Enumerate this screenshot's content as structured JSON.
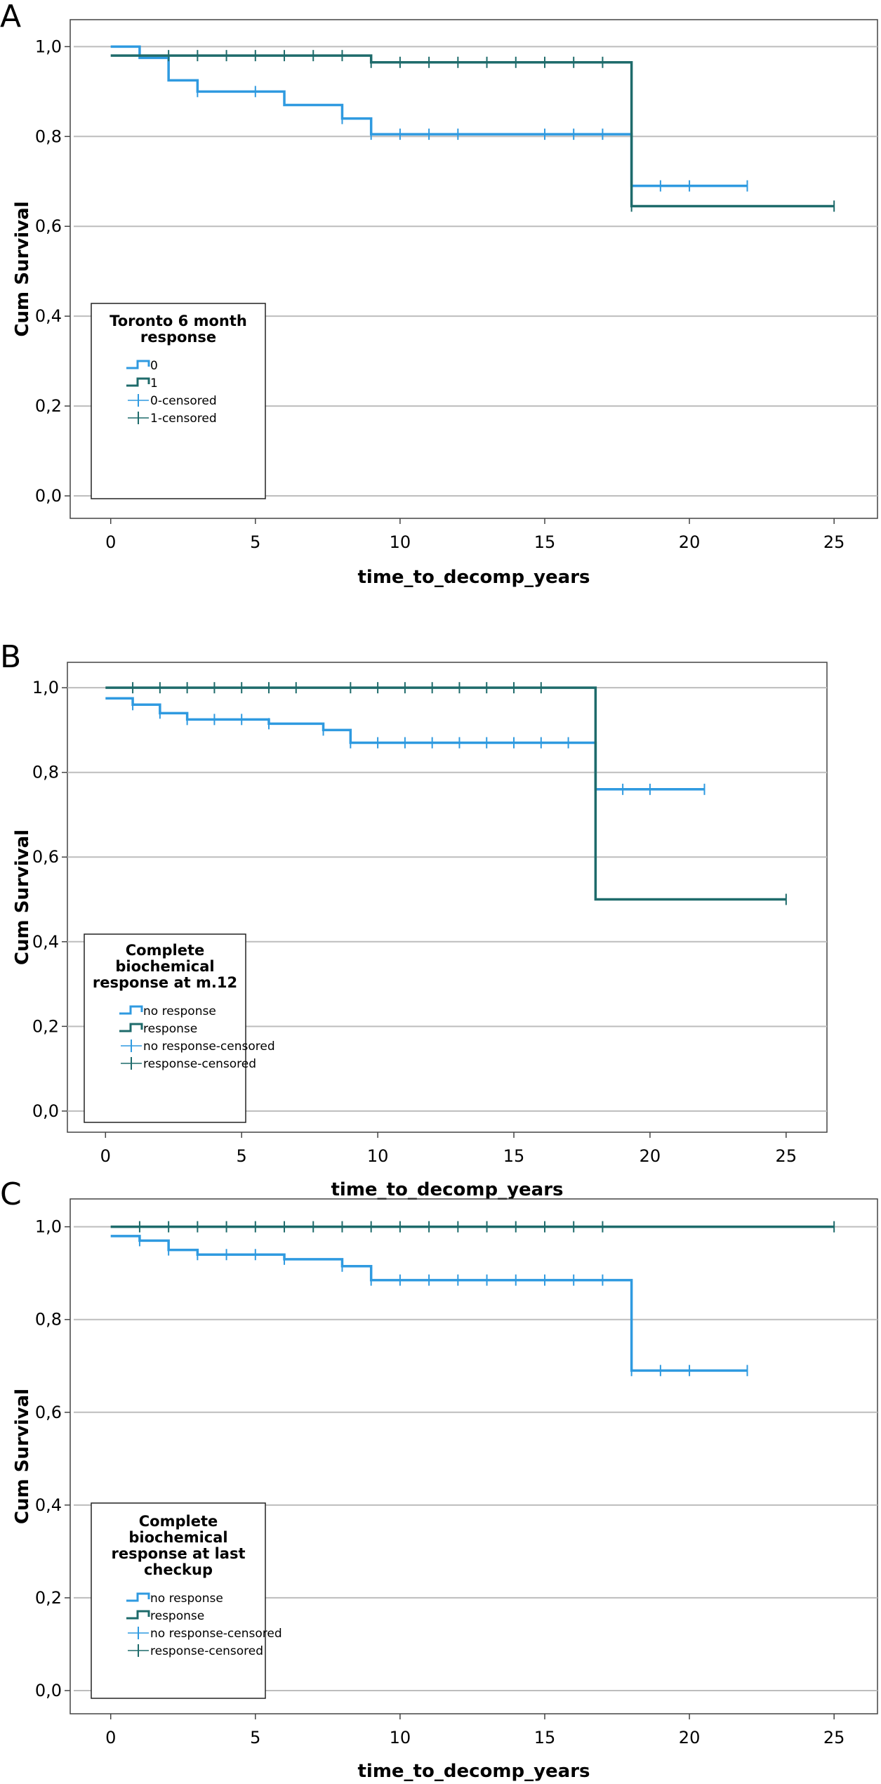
{
  "chart_data": [
    {
      "panel_letter": "A",
      "type": "line",
      "step": true,
      "xlabel": "time_to_decomp_years",
      "ylabel": "Cum Survival",
      "xlim": [
        -1.4,
        26.5
      ],
      "ylim": [
        -0.05,
        1.06
      ],
      "xticks": [
        0,
        5,
        10,
        15,
        20,
        25
      ],
      "yticks": [
        "1,0",
        "0,8",
        "0,6",
        "0,4",
        "0,2",
        "0,0"
      ],
      "grid": "horizontal",
      "legend": {
        "title": [
          "Toronto 6 month",
          "response"
        ],
        "placement": "lower-left",
        "entries": [
          "0",
          "1",
          "0-censored",
          "1-censored"
        ]
      },
      "series": [
        {
          "name": "0",
          "color": "#2f9ae0",
          "steps": [
            [
              0,
              1.0
            ],
            [
              1,
              0.975
            ],
            [
              2,
              0.925
            ],
            [
              3,
              0.9
            ],
            [
              6,
              0.87
            ],
            [
              8,
              0.84
            ],
            [
              9,
              0.805
            ],
            [
              18,
              0.69
            ],
            [
              22,
              0.69
            ]
          ],
          "censored": [
            [
              3,
              0.9
            ],
            [
              5,
              0.9
            ],
            [
              8,
              0.84
            ],
            [
              9,
              0.805
            ],
            [
              10,
              0.805
            ],
            [
              11,
              0.805
            ],
            [
              12,
              0.805
            ],
            [
              15,
              0.805
            ],
            [
              16,
              0.805
            ],
            [
              17,
              0.805
            ],
            [
              18,
              0.69
            ],
            [
              19,
              0.69
            ],
            [
              20,
              0.69
            ],
            [
              22,
              0.69
            ]
          ]
        },
        {
          "name": "1",
          "color": "#1e6b6b",
          "steps": [
            [
              0,
              0.98
            ],
            [
              9,
              0.965
            ],
            [
              18,
              0.645
            ],
            [
              25,
              0.645
            ]
          ],
          "censored": [
            [
              2,
              0.98
            ],
            [
              3,
              0.98
            ],
            [
              4,
              0.98
            ],
            [
              5,
              0.98
            ],
            [
              6,
              0.98
            ],
            [
              7,
              0.98
            ],
            [
              8,
              0.98
            ],
            [
              9,
              0.965
            ],
            [
              10,
              0.965
            ],
            [
              11,
              0.965
            ],
            [
              12,
              0.965
            ],
            [
              13,
              0.965
            ],
            [
              14,
              0.965
            ],
            [
              15,
              0.965
            ],
            [
              16,
              0.965
            ],
            [
              17,
              0.965
            ],
            [
              18,
              0.645
            ],
            [
              25,
              0.645
            ]
          ]
        }
      ]
    },
    {
      "panel_letter": "B",
      "type": "line",
      "step": true,
      "xlabel": "time_to_decomp_years",
      "ylabel": "Cum Survival",
      "xlim": [
        -1.4,
        26.5
      ],
      "ylim": [
        -0.05,
        1.06
      ],
      "xticks": [
        0,
        5,
        10,
        15,
        20,
        25
      ],
      "yticks": [
        "1,0",
        "0,8",
        "0,6",
        "0,4",
        "0,2",
        "0,0"
      ],
      "grid": "horizontal",
      "legend": {
        "title": [
          "Complete",
          "biochemical",
          "response at m.12"
        ],
        "placement": "lower-left",
        "entries": [
          "no response",
          "response",
          "no response-censored",
          "response-censored"
        ]
      },
      "series": [
        {
          "name": "no response",
          "color": "#2f9ae0",
          "steps": [
            [
              0,
              0.975
            ],
            [
              1,
              0.96
            ],
            [
              2,
              0.94
            ],
            [
              3,
              0.925
            ],
            [
              6,
              0.915
            ],
            [
              8,
              0.9
            ],
            [
              9,
              0.87
            ],
            [
              18,
              0.76
            ],
            [
              22,
              0.76
            ]
          ],
          "censored": [
            [
              1,
              0.96
            ],
            [
              2,
              0.94
            ],
            [
              3,
              0.925
            ],
            [
              4,
              0.925
            ],
            [
              5,
              0.925
            ],
            [
              6,
              0.915
            ],
            [
              8,
              0.9
            ],
            [
              9,
              0.87
            ],
            [
              10,
              0.87
            ],
            [
              11,
              0.87
            ],
            [
              12,
              0.87
            ],
            [
              13,
              0.87
            ],
            [
              14,
              0.87
            ],
            [
              15,
              0.87
            ],
            [
              16,
              0.87
            ],
            [
              17,
              0.87
            ],
            [
              18,
              0.76
            ],
            [
              19,
              0.76
            ],
            [
              20,
              0.76
            ],
            [
              22,
              0.76
            ]
          ]
        },
        {
          "name": "response",
          "color": "#1e6b6b",
          "steps": [
            [
              0,
              1.0
            ],
            [
              18,
              0.5
            ],
            [
              25,
              0.5
            ]
          ],
          "censored": [
            [
              1,
              1.0
            ],
            [
              2,
              1.0
            ],
            [
              3,
              1.0
            ],
            [
              4,
              1.0
            ],
            [
              5,
              1.0
            ],
            [
              6,
              1.0
            ],
            [
              7,
              1.0
            ],
            [
              9,
              1.0
            ],
            [
              10,
              1.0
            ],
            [
              11,
              1.0
            ],
            [
              12,
              1.0
            ],
            [
              13,
              1.0
            ],
            [
              14,
              1.0
            ],
            [
              15,
              1.0
            ],
            [
              16,
              1.0
            ],
            [
              25,
              0.5
            ]
          ]
        }
      ]
    },
    {
      "panel_letter": "C",
      "type": "line",
      "step": true,
      "xlabel": "time_to_decomp_years",
      "ylabel": "Cum Survival",
      "xlim": [
        -1.4,
        26.5
      ],
      "ylim": [
        -0.05,
        1.06
      ],
      "xticks": [
        0,
        5,
        10,
        15,
        20,
        25
      ],
      "yticks": [
        "1,0",
        "0,8",
        "0,6",
        "0,4",
        "0,2",
        "0,0"
      ],
      "grid": "horizontal",
      "legend": {
        "title": [
          "Complete",
          "biochemical",
          "response at last",
          "checkup"
        ],
        "placement": "lower-left",
        "entries": [
          "no response",
          "response",
          "no response-censored",
          "response-censored"
        ]
      },
      "series": [
        {
          "name": "no response",
          "color": "#2f9ae0",
          "steps": [
            [
              0,
              0.98
            ],
            [
              1,
              0.97
            ],
            [
              2,
              0.95
            ],
            [
              3,
              0.94
            ],
            [
              6,
              0.93
            ],
            [
              8,
              0.915
            ],
            [
              9,
              0.885
            ],
            [
              18,
              0.69
            ],
            [
              22,
              0.69
            ]
          ],
          "censored": [
            [
              1,
              0.97
            ],
            [
              2,
              0.95
            ],
            [
              3,
              0.94
            ],
            [
              4,
              0.94
            ],
            [
              5,
              0.94
            ],
            [
              6,
              0.93
            ],
            [
              8,
              0.915
            ],
            [
              9,
              0.885
            ],
            [
              10,
              0.885
            ],
            [
              11,
              0.885
            ],
            [
              12,
              0.885
            ],
            [
              13,
              0.885
            ],
            [
              14,
              0.885
            ],
            [
              15,
              0.885
            ],
            [
              16,
              0.885
            ],
            [
              17,
              0.885
            ],
            [
              18,
              0.69
            ],
            [
              19,
              0.69
            ],
            [
              20,
              0.69
            ],
            [
              22,
              0.69
            ]
          ]
        },
        {
          "name": "response",
          "color": "#1e6b6b",
          "steps": [
            [
              0,
              1.0
            ],
            [
              25,
              1.0
            ]
          ],
          "censored": [
            [
              1,
              1.0
            ],
            [
              2,
              1.0
            ],
            [
              3,
              1.0
            ],
            [
              4,
              1.0
            ],
            [
              5,
              1.0
            ],
            [
              6,
              1.0
            ],
            [
              7,
              1.0
            ],
            [
              8,
              1.0
            ],
            [
              9,
              1.0
            ],
            [
              10,
              1.0
            ],
            [
              11,
              1.0
            ],
            [
              12,
              1.0
            ],
            [
              13,
              1.0
            ],
            [
              14,
              1.0
            ],
            [
              15,
              1.0
            ],
            [
              16,
              1.0
            ],
            [
              17,
              1.0
            ],
            [
              25,
              1.0
            ]
          ]
        }
      ]
    }
  ]
}
